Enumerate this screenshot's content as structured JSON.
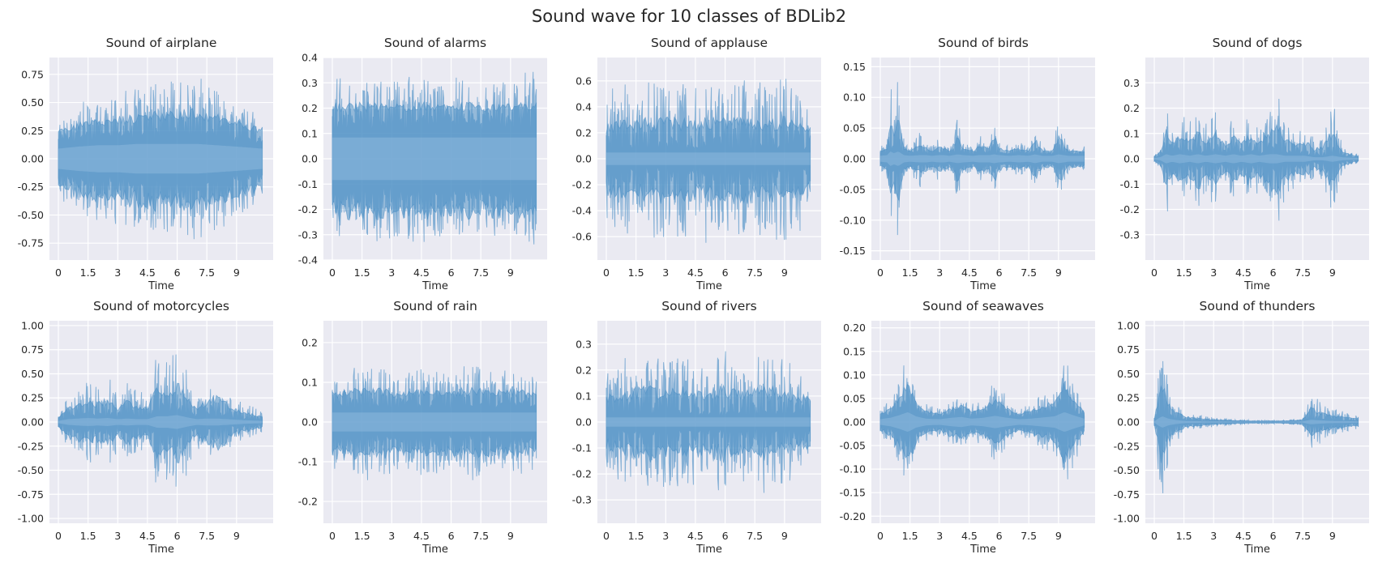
{
  "figure": {
    "title": "Sound wave for 10 classes of BDLib2"
  },
  "colors": {
    "plot_background": "#eaeaf2",
    "grid": "#ffffff",
    "wave": "#4c8fc4"
  },
  "chart_data": [
    {
      "type": "area",
      "title": "Sound of airplane",
      "xlabel": "Time",
      "xlim": [
        -0.45,
        10.85
      ],
      "ylim": [
        -0.9,
        0.9
      ],
      "xticks": [
        "0",
        "1.5",
        "3",
        "4.5",
        "6",
        "7.5",
        "9"
      ],
      "yticks": [
        "-0.75",
        "-0.50",
        "-0.25",
        "0.00",
        "0.25",
        "0.50",
        "0.75"
      ],
      "envelope": {
        "x": [
          0,
          1,
          2,
          3,
          4,
          5,
          6,
          7,
          8,
          9,
          10.3
        ],
        "peak": [
          0.4,
          0.5,
          0.55,
          0.6,
          0.62,
          0.68,
          0.7,
          0.75,
          0.65,
          0.55,
          0.45
        ],
        "core": [
          0.15,
          0.18,
          0.2,
          0.2,
          0.22,
          0.22,
          0.22,
          0.22,
          0.2,
          0.18,
          0.15
        ]
      }
    },
    {
      "type": "area",
      "title": "Sound of alarms",
      "xlabel": "Time",
      "xlim": [
        -0.45,
        10.85
      ],
      "ylim": [
        -0.4,
        0.4
      ],
      "xticks": [
        "0",
        "1.5",
        "3",
        "4.5",
        "6",
        "7.5",
        "9"
      ],
      "yticks": [
        "-0.4",
        "-0.3",
        "-0.2",
        "-0.1",
        "0.0",
        "0.1",
        "0.2",
        "0.3",
        "0.4"
      ],
      "envelope": {
        "x": [
          0,
          1,
          2,
          3,
          4,
          5,
          6,
          7,
          8,
          9,
          10.3
        ],
        "peak": [
          0.32,
          0.32,
          0.33,
          0.32,
          0.33,
          0.33,
          0.32,
          0.33,
          0.32,
          0.33,
          0.35
        ],
        "core": [
          0.14,
          0.14,
          0.14,
          0.14,
          0.14,
          0.14,
          0.14,
          0.14,
          0.14,
          0.14,
          0.14
        ]
      }
    },
    {
      "type": "area",
      "title": "Sound of applause",
      "xlabel": "Time",
      "xlim": [
        -0.45,
        10.85
      ],
      "ylim": [
        -0.78,
        0.78
      ],
      "xticks": [
        "0",
        "1.5",
        "3",
        "4.5",
        "6",
        "7.5",
        "9"
      ],
      "yticks": [
        "-0.6",
        "-0.4",
        "-0.2",
        "0.0",
        "0.2",
        "0.4",
        "0.6"
      ],
      "envelope": {
        "x": [
          0,
          1,
          2,
          3,
          4,
          5,
          6,
          7,
          8,
          9,
          10.3
        ],
        "peak": [
          0.55,
          0.6,
          0.62,
          0.62,
          0.6,
          0.65,
          0.6,
          0.62,
          0.6,
          0.65,
          0.55
        ],
        "core": [
          0.08,
          0.08,
          0.08,
          0.08,
          0.08,
          0.08,
          0.08,
          0.08,
          0.08,
          0.08,
          0.08
        ]
      }
    },
    {
      "type": "area",
      "title": "Sound of birds",
      "xlabel": "Time",
      "xlim": [
        -0.45,
        10.85
      ],
      "ylim": [
        -0.165,
        0.165
      ],
      "xticks": [
        "0",
        "1.5",
        "3",
        "4.5",
        "6",
        "7.5",
        "9"
      ],
      "yticks": [
        "-0.15",
        "-0.10",
        "-0.05",
        "0.00",
        "0.05",
        "0.10",
        "0.15"
      ],
      "envelope": {
        "x": [
          0,
          0.35,
          0.5,
          0.7,
          0.9,
          1.2,
          1.5,
          2,
          2.3,
          2.6,
          3,
          3.2,
          3.5,
          3.9,
          4.2,
          4.7,
          5,
          5.5,
          5.75,
          6,
          6.5,
          7,
          7.5,
          7.8,
          8.2,
          8.7,
          9,
          9.5,
          10.3
        ],
        "peak": [
          0.02,
          0.03,
          0.15,
          0.08,
          0.14,
          0.03,
          0.02,
          0.05,
          0.03,
          0.02,
          0.04,
          0.03,
          0.02,
          0.07,
          0.03,
          0.02,
          0.04,
          0.03,
          0.08,
          0.03,
          0.02,
          0.03,
          0.02,
          0.07,
          0.02,
          0.02,
          0.08,
          0.02,
          0.02
        ],
        "core": [
          0.008,
          0.01,
          0.02,
          0.015,
          0.02,
          0.01,
          0.008,
          0.01,
          0.01,
          0.008,
          0.01,
          0.01,
          0.008,
          0.012,
          0.01,
          0.008,
          0.01,
          0.01,
          0.012,
          0.01,
          0.008,
          0.01,
          0.008,
          0.012,
          0.008,
          0.008,
          0.012,
          0.008,
          0.008
        ]
      }
    },
    {
      "type": "area",
      "title": "Sound of dogs",
      "xlabel": "Time",
      "xlim": [
        -0.45,
        10.85
      ],
      "ylim": [
        -0.4,
        0.4
      ],
      "xticks": [
        "0",
        "1.5",
        "3",
        "4.5",
        "6",
        "7.5",
        "9"
      ],
      "yticks": [
        "-0.3",
        "-0.2",
        "-0.1",
        "0.0",
        "0.1",
        "0.2",
        "0.3"
      ],
      "envelope": {
        "x": [
          0,
          0.3,
          0.6,
          0.9,
          1.3,
          1.8,
          2.2,
          2.6,
          3.1,
          3.6,
          4.0,
          4.4,
          4.9,
          5.3,
          5.8,
          6.2,
          6.6,
          7.1,
          7.6,
          8.1,
          8.5,
          9.0,
          9.5,
          10.3
        ],
        "peak": [
          0.02,
          0.05,
          0.25,
          0.12,
          0.2,
          0.15,
          0.22,
          0.14,
          0.2,
          0.12,
          0.18,
          0.12,
          0.2,
          0.12,
          0.22,
          0.3,
          0.15,
          0.12,
          0.15,
          0.08,
          0.1,
          0.25,
          0.05,
          0.02
        ],
        "core": [
          0.005,
          0.01,
          0.03,
          0.02,
          0.03,
          0.02,
          0.03,
          0.02,
          0.03,
          0.02,
          0.03,
          0.02,
          0.03,
          0.02,
          0.03,
          0.03,
          0.02,
          0.02,
          0.02,
          0.01,
          0.01,
          0.02,
          0.01,
          0.005
        ]
      }
    },
    {
      "type": "area",
      "title": "Sound of motorcycles",
      "xlabel": "Time",
      "xlim": [
        -0.45,
        10.85
      ],
      "ylim": [
        -1.05,
        1.05
      ],
      "xticks": [
        "0",
        "1.5",
        "3",
        "4.5",
        "6",
        "7.5",
        "9"
      ],
      "yticks": [
        "-1.00",
        "-0.75",
        "-0.50",
        "-0.25",
        "0.00",
        "0.25",
        "0.50",
        "0.75",
        "1.00"
      ],
      "envelope": {
        "x": [
          0,
          0.5,
          1,
          1.5,
          2,
          2.5,
          3,
          3.5,
          4,
          4.5,
          5,
          5.5,
          6,
          6.5,
          7,
          7.5,
          8,
          8.5,
          9,
          9.5,
          10.3
        ],
        "peak": [
          0.1,
          0.3,
          0.35,
          0.45,
          0.4,
          0.5,
          0.3,
          0.45,
          0.35,
          0.3,
          0.75,
          0.7,
          0.8,
          0.6,
          0.3,
          0.5,
          0.55,
          0.4,
          0.25,
          0.2,
          0.1
        ],
        "core": [
          0.02,
          0.05,
          0.06,
          0.07,
          0.06,
          0.07,
          0.05,
          0.06,
          0.05,
          0.05,
          0.1,
          0.1,
          0.12,
          0.08,
          0.05,
          0.06,
          0.06,
          0.05,
          0.04,
          0.03,
          0.02
        ]
      }
    },
    {
      "type": "area",
      "title": "Sound of rain",
      "xlabel": "Time",
      "xlim": [
        -0.45,
        10.85
      ],
      "ylim": [
        -0.255,
        0.255
      ],
      "xticks": [
        "0",
        "1.5",
        "3",
        "4.5",
        "6",
        "7.5",
        "9"
      ],
      "yticks": [
        "-0.2",
        "-0.1",
        "0.0",
        "0.1",
        "0.2"
      ],
      "envelope": {
        "x": [
          0,
          1,
          2,
          3,
          4,
          5,
          6,
          7,
          8,
          9,
          10.3
        ],
        "peak": [
          0.12,
          0.14,
          0.15,
          0.13,
          0.14,
          0.13,
          0.14,
          0.15,
          0.13,
          0.14,
          0.12
        ],
        "core": [
          0.04,
          0.04,
          0.04,
          0.04,
          0.04,
          0.04,
          0.04,
          0.04,
          0.04,
          0.04,
          0.04
        ]
      }
    },
    {
      "type": "area",
      "title": "Sound of rivers",
      "xlabel": "Time",
      "xlim": [
        -0.45,
        10.85
      ],
      "ylim": [
        -0.39,
        0.39
      ],
      "xticks": [
        "0",
        "1.5",
        "3",
        "4.5",
        "6",
        "7.5",
        "9"
      ],
      "yticks": [
        "-0.3",
        "-0.2",
        "-0.1",
        "0.0",
        "0.1",
        "0.2",
        "0.3"
      ],
      "envelope": {
        "x": [
          0,
          1,
          2,
          3,
          4,
          5,
          6,
          7,
          8,
          9,
          10.3
        ],
        "peak": [
          0.2,
          0.25,
          0.28,
          0.25,
          0.28,
          0.25,
          0.28,
          0.25,
          0.28,
          0.25,
          0.2
        ],
        "core": [
          0.03,
          0.03,
          0.03,
          0.03,
          0.03,
          0.03,
          0.03,
          0.03,
          0.03,
          0.03,
          0.03
        ]
      }
    },
    {
      "type": "area",
      "title": "Sound of seawaves",
      "xlabel": "Time",
      "xlim": [
        -0.45,
        10.85
      ],
      "ylim": [
        -0.215,
        0.215
      ],
      "xticks": [
        "0",
        "1.5",
        "3",
        "4.5",
        "6",
        "7.5",
        "9"
      ],
      "yticks": [
        "-0.20",
        "-0.15",
        "-0.10",
        "-0.05",
        "0.00",
        "0.05",
        "0.10",
        "0.15",
        "0.20"
      ],
      "envelope": {
        "x": [
          0,
          0.5,
          1,
          1.4,
          1.8,
          2.3,
          3,
          3.6,
          4.1,
          4.6,
          5.2,
          5.8,
          6.3,
          7,
          7.6,
          8.2,
          8.8,
          9.3,
          9.7,
          10.3
        ],
        "peak": [
          0.03,
          0.05,
          0.1,
          0.15,
          0.07,
          0.04,
          0.03,
          0.05,
          0.06,
          0.04,
          0.05,
          0.09,
          0.06,
          0.03,
          0.04,
          0.06,
          0.08,
          0.15,
          0.1,
          0.04
        ],
        "core": [
          0.01,
          0.015,
          0.025,
          0.035,
          0.02,
          0.012,
          0.01,
          0.015,
          0.018,
          0.012,
          0.015,
          0.022,
          0.016,
          0.01,
          0.012,
          0.016,
          0.02,
          0.035,
          0.025,
          0.012
        ]
      }
    },
    {
      "type": "area",
      "title": "Sound of thunders",
      "xlabel": "Time",
      "xlim": [
        -0.45,
        10.85
      ],
      "ylim": [
        -1.05,
        1.05
      ],
      "xticks": [
        "0",
        "1.5",
        "3",
        "4.5",
        "6",
        "7.5",
        "9"
      ],
      "yticks": [
        "-1.00",
        "-0.75",
        "-0.50",
        "-0.25",
        "0.00",
        "0.25",
        "0.50",
        "0.75",
        "1.00"
      ],
      "envelope": {
        "x": [
          0,
          0.2,
          0.4,
          0.7,
          1,
          1.5,
          2,
          3,
          4,
          5,
          6,
          7,
          7.5,
          7.9,
          8.3,
          8.8,
          9.3,
          10.3
        ],
        "peak": [
          0.05,
          0.5,
          0.85,
          0.4,
          0.25,
          0.12,
          0.08,
          0.05,
          0.03,
          0.02,
          0.02,
          0.03,
          0.05,
          0.3,
          0.25,
          0.15,
          0.12,
          0.08
        ],
        "core": [
          0.01,
          0.06,
          0.1,
          0.06,
          0.04,
          0.02,
          0.015,
          0.01,
          0.008,
          0.005,
          0.005,
          0.008,
          0.01,
          0.04,
          0.03,
          0.02,
          0.018,
          0.012
        ]
      }
    }
  ]
}
